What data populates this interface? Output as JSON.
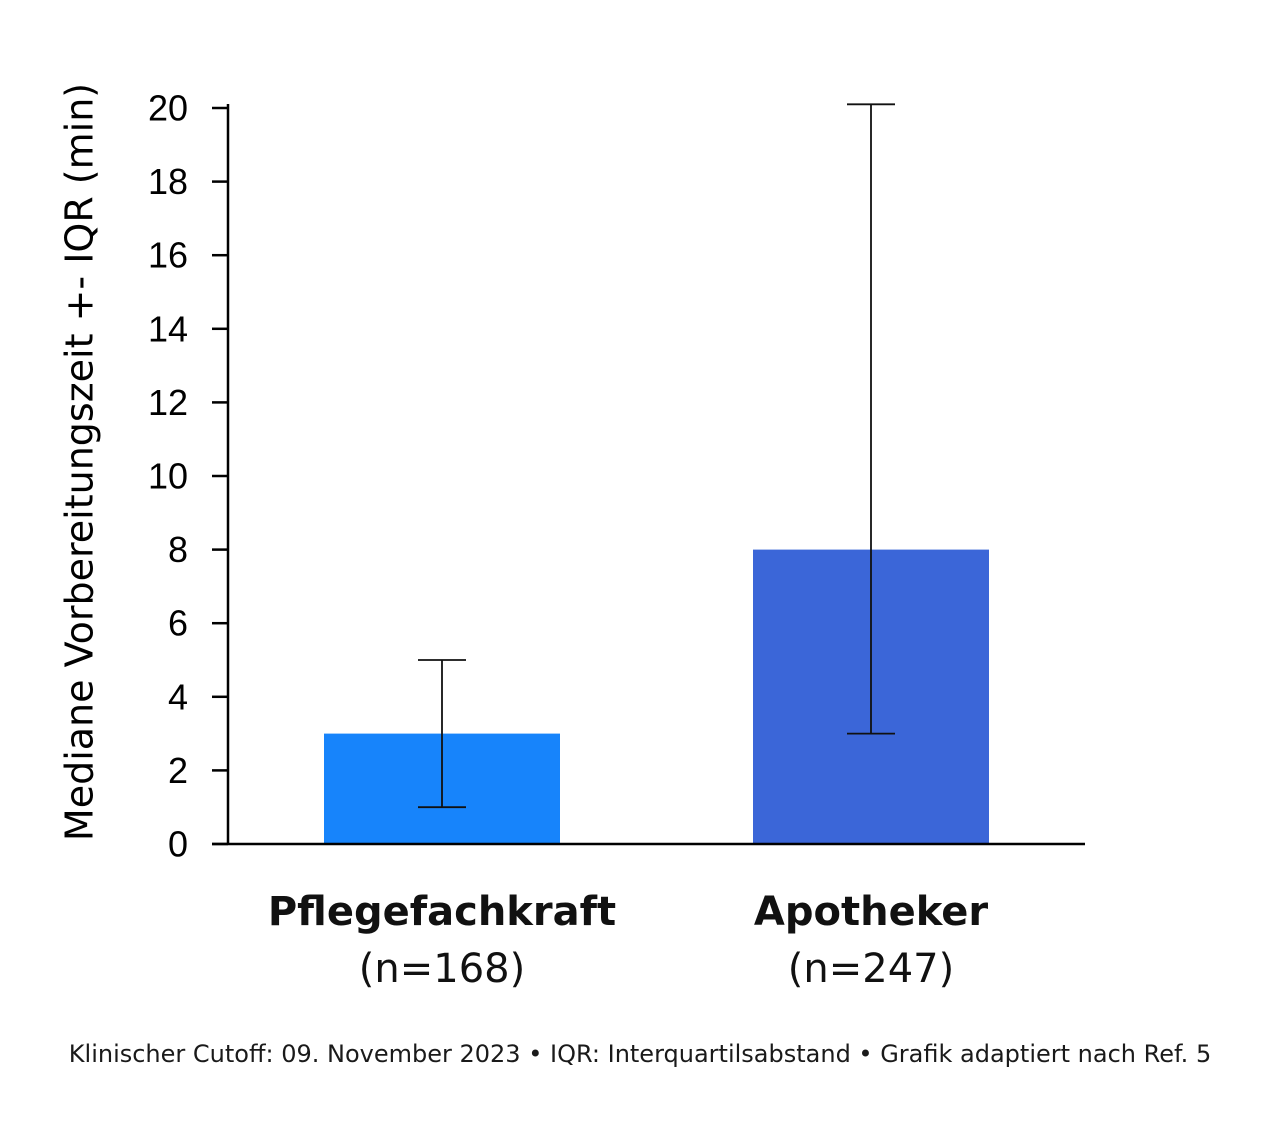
{
  "chart_data": {
    "type": "bar",
    "ylabel": "Mediane Vorbereitungszeit +- IQR (min)",
    "xlabel": "",
    "ylim": [
      0,
      20
    ],
    "yticks": [
      0,
      2,
      4,
      6,
      8,
      10,
      12,
      14,
      16,
      18,
      20
    ],
    "grid": false,
    "categories": [
      {
        "name": "Pflegefachkraft",
        "n_label": "(n=168)"
      },
      {
        "name": "Apotheker",
        "n_label": "(n=247)"
      }
    ],
    "values": [
      3,
      8
    ],
    "error_low": [
      1,
      3
    ],
    "error_high": [
      5,
      20.1
    ],
    "colors": [
      "#1784fb",
      "#3b66d8"
    ]
  },
  "footnote": "Klinischer Cutoff: 09. November 2023 • IQR: Interquartilsabstand • Grafik adaptiert nach Ref. 5"
}
